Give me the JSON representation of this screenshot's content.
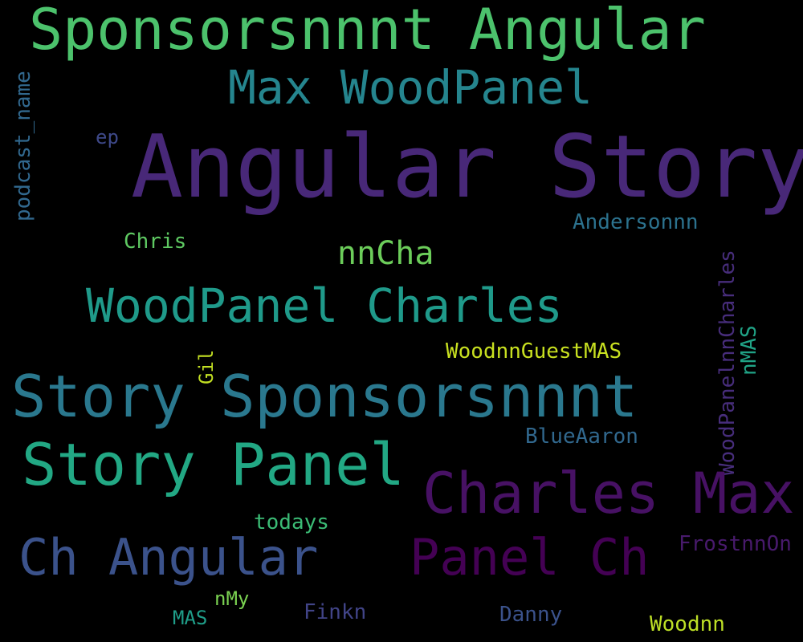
{
  "wordcloud": {
    "background": "#000000",
    "words": [
      {
        "key": "sponsors_angular",
        "text": "Sponsorsnnnt Angular",
        "color": "#4cc26c"
      },
      {
        "key": "max_woodpanel",
        "text": "Max WoodPanel",
        "color": "#25858e"
      },
      {
        "key": "angular_story",
        "text": "Angular Story",
        "color": "#482878"
      },
      {
        "key": "podcast_name",
        "text": "podcast_name",
        "color": "#31688e"
      },
      {
        "key": "ep",
        "text": "ep",
        "color": "#3e4989"
      },
      {
        "key": "andersonnn",
        "text": "Andersonnn",
        "color": "#2c728e"
      },
      {
        "key": "chris",
        "text": "Chris",
        "color": "#5ec962"
      },
      {
        "key": "nncha",
        "text": "nnCha",
        "color": "#6ccd5a"
      },
      {
        "key": "woodpanel_charles",
        "text": "WoodPanel Charles",
        "color": "#1f9a8a"
      },
      {
        "key": "woodpanelnncharles",
        "text": "WoodPanelnnCharles",
        "color": "#472d7b"
      },
      {
        "key": "nmas",
        "text": "nMAS",
        "color": "#20a386"
      },
      {
        "key": "gil",
        "text": "Gil",
        "color": "#c2df23"
      },
      {
        "key": "woodnnguestmas",
        "text": "WoodnnGuestMAS",
        "color": "#c8e020"
      },
      {
        "key": "story_sponsorsnnnt",
        "text": "Story Sponsorsnnnt",
        "color": "#2a788e"
      },
      {
        "key": "bluearaon",
        "text": "BlueAaron",
        "color": "#31688e"
      },
      {
        "key": "story_panel",
        "text": "Story Panel",
        "color": "#22a884"
      },
      {
        "key": "charles_max",
        "text": "Charles Max",
        "color": "#471164"
      },
      {
        "key": "todays",
        "text": "todays",
        "color": "#3bbb75"
      },
      {
        "key": "ch_angular",
        "text": "Ch Angular",
        "color": "#3b528b"
      },
      {
        "key": "panel_ch",
        "text": "Panel Ch",
        "color": "#440154"
      },
      {
        "key": "frostnnon",
        "text": "FrostnnOn",
        "color": "#481a6c"
      },
      {
        "key": "nmy",
        "text": "nMy",
        "color": "#7ad151"
      },
      {
        "key": "finkn",
        "text": "Finkn",
        "color": "#414487"
      },
      {
        "key": "mas",
        "text": "MAS",
        "color": "#1f9e89"
      },
      {
        "key": "danny",
        "text": "Danny",
        "color": "#3b528b"
      },
      {
        "key": "woodnn",
        "text": "Woodnn",
        "color": "#bddf26"
      }
    ]
  }
}
